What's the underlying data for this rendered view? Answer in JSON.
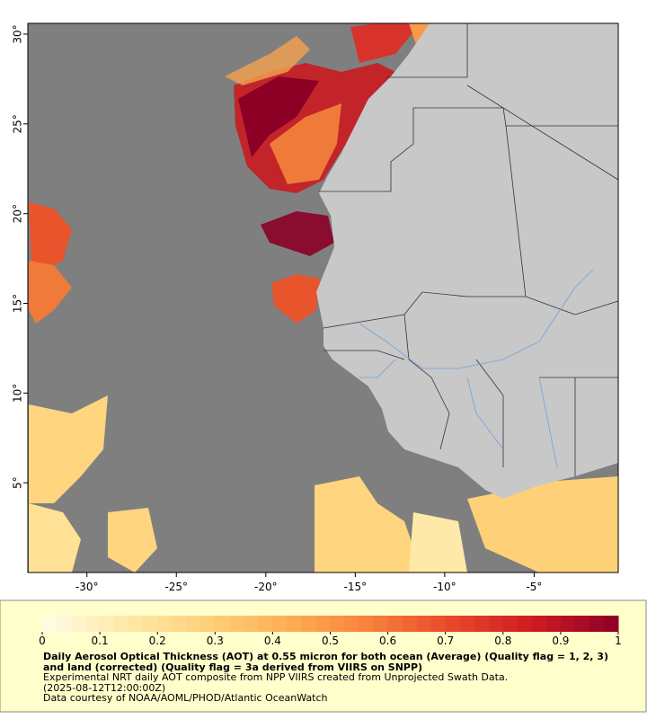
{
  "map": {
    "xlim": [
      -33.3,
      -0.3
    ],
    "ylim": [
      0,
      30.6
    ],
    "xticks": [
      {
        "value": -30,
        "label": "-30°"
      },
      {
        "value": -25,
        "label": "-25°"
      },
      {
        "value": -20,
        "label": "-20°"
      },
      {
        "value": -15,
        "label": "-15°"
      },
      {
        "value": -10,
        "label": "-10°"
      },
      {
        "value": -5,
        "label": "-5°"
      }
    ],
    "yticks": [
      {
        "value": 30,
        "label": "30°"
      },
      {
        "value": 25,
        "label": "25°"
      },
      {
        "value": 20,
        "label": "20°"
      },
      {
        "value": 15,
        "label": "15°"
      },
      {
        "value": 10,
        "label": "10°"
      },
      {
        "value": 5,
        "label": "5°"
      }
    ]
  },
  "colorbar": {
    "lim": [
      0,
      1
    ],
    "ticks": [
      0,
      0.1,
      0.2,
      0.3,
      0.4,
      0.5,
      0.6,
      0.7,
      0.8,
      0.9,
      1
    ],
    "colors": [
      "#fffce8",
      "#ffe9a8",
      "#fed179",
      "#fdae55",
      "#f9803a",
      "#e8462a",
      "#cc1a22",
      "#8c0026"
    ]
  },
  "caption": {
    "title": "Daily Aerosol Optical Thickness (AOT) at 0.55 micron for both ocean (Average) (Quality flag = 1, 2, 3) and land (corrected) (Quality flag = 3a derived from VIIRS on SNPP)",
    "lines": [
      "Experimental NRT daily AOT composite from NPP VIIRS created from Unprojected Swath Data.",
      "(2025-08-12T12:00:00Z)",
      "Data courtesy of NOAA/AOML/PHOD/Atlantic OceanWatch"
    ]
  }
}
